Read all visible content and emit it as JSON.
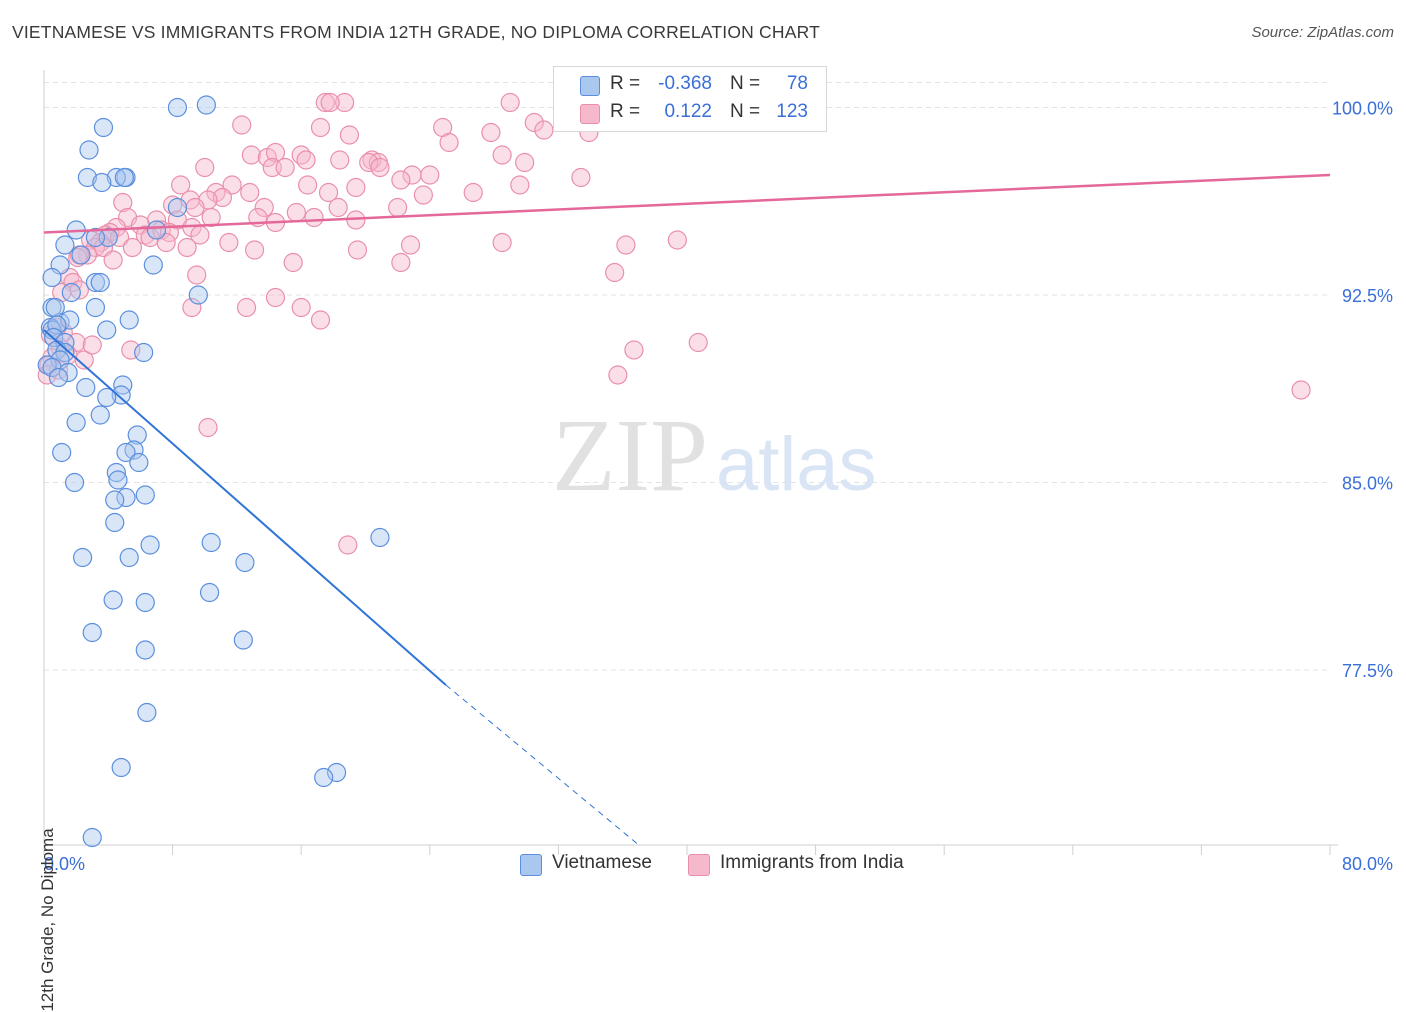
{
  "title": "VIETNAMESE VS IMMIGRANTS FROM INDIA 12TH GRADE, NO DIPLOMA CORRELATION CHART",
  "source": "Source: ZipAtlas.com",
  "watermark": {
    "zip": "ZIP",
    "atlas": "atlas"
  },
  "colors": {
    "blue_fill": "#aac7f0",
    "blue_stroke": "#5b8fde",
    "blue_line": "#2f74d6",
    "pink_fill": "#f6b9cc",
    "pink_stroke": "#ea8fab",
    "pink_line": "#e5689a",
    "value_text": "#3a6fd8",
    "grid": "#e3e3e3"
  },
  "legend": {
    "r_label": "R =",
    "n_label": "N =",
    "rows": [
      {
        "name": "Vietnamese",
        "r": "-0.368",
        "n": "78"
      },
      {
        "name": "Immigrants from India",
        "r": "0.122",
        "n": "123"
      }
    ]
  },
  "chart_data": {
    "type": "scatter",
    "title": "VIETNAMESE VS IMMIGRANTS FROM INDIA 12TH GRADE, NO DIPLOMA CORRELATION CHART",
    "xlabel": "",
    "ylabel": "12th Grade, No Diploma",
    "xlim": [
      0,
      80
    ],
    "ylim": [
      70.5,
      101.5
    ],
    "x_tick_labels": [
      "0.0%",
      "80.0%"
    ],
    "y_ticks": [
      77.5,
      85.0,
      92.5,
      100.0
    ],
    "y_tick_labels": [
      "77.5%",
      "85.0%",
      "92.5%",
      "100.0%"
    ],
    "grid": true,
    "legend_position": "top-center",
    "series": [
      {
        "name": "Vietnamese",
        "r": -0.368,
        "n": 78,
        "trend": {
          "x": [
            0.0,
            25.0
          ],
          "y": [
            91.1,
            76.9
          ],
          "dashed_to": [
            37.0,
            70.5
          ]
        },
        "points": [
          [
            8.3,
            100.0
          ],
          [
            10.1,
            100.1
          ],
          [
            3.7,
            99.2
          ],
          [
            2.8,
            98.3
          ],
          [
            5.1,
            97.2
          ],
          [
            2.7,
            97.2
          ],
          [
            4.5,
            97.2
          ],
          [
            5.0,
            97.2
          ],
          [
            3.6,
            97.0
          ],
          [
            8.3,
            96.0
          ],
          [
            2.0,
            95.1
          ],
          [
            7.0,
            95.1
          ],
          [
            4.0,
            94.8
          ],
          [
            3.2,
            94.8
          ],
          [
            1.3,
            94.5
          ],
          [
            2.3,
            94.1
          ],
          [
            1.0,
            93.7
          ],
          [
            6.8,
            93.7
          ],
          [
            0.5,
            93.2
          ],
          [
            3.2,
            93.0
          ],
          [
            3.5,
            93.0
          ],
          [
            1.7,
            92.6
          ],
          [
            9.6,
            92.5
          ],
          [
            3.2,
            92.0
          ],
          [
            0.5,
            92.0
          ],
          [
            5.3,
            91.5
          ],
          [
            1.0,
            91.4
          ],
          [
            1.6,
            91.5
          ],
          [
            0.4,
            91.2
          ],
          [
            0.5,
            91.1
          ],
          [
            0.8,
            91.3
          ],
          [
            3.9,
            91.1
          ],
          [
            0.6,
            90.8
          ],
          [
            1.3,
            90.6
          ],
          [
            0.8,
            90.3
          ],
          [
            1.3,
            90.2
          ],
          [
            6.2,
            90.2
          ],
          [
            1.0,
            89.9
          ],
          [
            0.2,
            89.7
          ],
          [
            0.5,
            89.6
          ],
          [
            1.5,
            89.4
          ],
          [
            0.9,
            89.2
          ],
          [
            4.9,
            88.9
          ],
          [
            2.6,
            88.8
          ],
          [
            4.8,
            88.5
          ],
          [
            3.9,
            88.4
          ],
          [
            3.5,
            87.7
          ],
          [
            2.0,
            87.4
          ],
          [
            5.8,
            86.9
          ],
          [
            1.1,
            86.2
          ],
          [
            5.6,
            86.3
          ],
          [
            5.1,
            86.2
          ],
          [
            5.9,
            85.8
          ],
          [
            4.5,
            85.4
          ],
          [
            4.6,
            85.1
          ],
          [
            1.9,
            85.0
          ],
          [
            6.3,
            84.5
          ],
          [
            5.1,
            84.4
          ],
          [
            4.4,
            84.3
          ],
          [
            4.4,
            83.4
          ],
          [
            20.9,
            82.8
          ],
          [
            10.4,
            82.6
          ],
          [
            6.6,
            82.5
          ],
          [
            2.4,
            82.0
          ],
          [
            5.3,
            82.0
          ],
          [
            12.5,
            81.8
          ],
          [
            10.3,
            80.6
          ],
          [
            4.3,
            80.3
          ],
          [
            6.3,
            80.2
          ],
          [
            3.0,
            79.0
          ],
          [
            12.4,
            78.7
          ],
          [
            6.3,
            78.3
          ],
          [
            6.4,
            75.8
          ],
          [
            18.2,
            73.4
          ],
          [
            17.4,
            73.2
          ],
          [
            4.8,
            73.6
          ],
          [
            3.0,
            70.8
          ],
          [
            0.7,
            92.0
          ]
        ]
      },
      {
        "name": "Immigrants from India",
        "r": 0.122,
        "n": 123,
        "trend": {
          "x": [
            0.0,
            80.0
          ],
          "y": [
            95.0,
            97.3
          ]
        },
        "points": [
          [
            17.5,
            100.2
          ],
          [
            18.7,
            100.2
          ],
          [
            29.0,
            100.2
          ],
          [
            17.8,
            100.2
          ],
          [
            30.5,
            99.4
          ],
          [
            24.8,
            99.2
          ],
          [
            12.3,
            99.3
          ],
          [
            17.2,
            99.2
          ],
          [
            27.8,
            99.0
          ],
          [
            19.0,
            98.9
          ],
          [
            31.1,
            99.1
          ],
          [
            33.9,
            99.0
          ],
          [
            25.2,
            98.6
          ],
          [
            12.9,
            98.1
          ],
          [
            16.0,
            98.1
          ],
          [
            13.9,
            98.0
          ],
          [
            14.4,
            98.2
          ],
          [
            28.5,
            98.1
          ],
          [
            16.3,
            97.9
          ],
          [
            18.4,
            97.9
          ],
          [
            20.4,
            97.9
          ],
          [
            20.8,
            97.8
          ],
          [
            29.9,
            97.8
          ],
          [
            20.2,
            97.8
          ],
          [
            14.2,
            97.6
          ],
          [
            15.0,
            97.6
          ],
          [
            10.0,
            97.6
          ],
          [
            20.9,
            97.6
          ],
          [
            22.9,
            97.3
          ],
          [
            24.0,
            97.3
          ],
          [
            33.4,
            97.2
          ],
          [
            22.2,
            97.1
          ],
          [
            8.5,
            96.9
          ],
          [
            11.7,
            96.9
          ],
          [
            16.4,
            96.9
          ],
          [
            19.4,
            96.8
          ],
          [
            29.6,
            96.9
          ],
          [
            10.7,
            96.6
          ],
          [
            12.8,
            96.6
          ],
          [
            17.7,
            96.6
          ],
          [
            11.1,
            96.4
          ],
          [
            23.6,
            96.5
          ],
          [
            26.7,
            96.6
          ],
          [
            9.1,
            96.3
          ],
          [
            10.2,
            96.3
          ],
          [
            4.9,
            96.2
          ],
          [
            8.0,
            96.1
          ],
          [
            13.7,
            96.0
          ],
          [
            22.0,
            96.0
          ],
          [
            9.4,
            96.0
          ],
          [
            18.3,
            96.0
          ],
          [
            15.7,
            95.8
          ],
          [
            16.8,
            95.6
          ],
          [
            13.3,
            95.6
          ],
          [
            10.4,
            95.6
          ],
          [
            5.2,
            95.6
          ],
          [
            8.3,
            95.5
          ],
          [
            19.4,
            95.5
          ],
          [
            7.0,
            95.5
          ],
          [
            14.4,
            95.4
          ],
          [
            6.0,
            95.3
          ],
          [
            9.2,
            95.2
          ],
          [
            4.5,
            95.2
          ],
          [
            7.3,
            95.1
          ],
          [
            4.1,
            95.0
          ],
          [
            7.8,
            95.0
          ],
          [
            6.3,
            94.9
          ],
          [
            3.8,
            94.9
          ],
          [
            9.7,
            94.9
          ],
          [
            6.6,
            94.8
          ],
          [
            4.7,
            94.8
          ],
          [
            2.9,
            94.7
          ],
          [
            3.5,
            94.6
          ],
          [
            7.6,
            94.6
          ],
          [
            11.5,
            94.6
          ],
          [
            39.4,
            94.7
          ],
          [
            28.5,
            94.6
          ],
          [
            22.8,
            94.5
          ],
          [
            36.2,
            94.5
          ],
          [
            5.5,
            94.4
          ],
          [
            3.2,
            94.4
          ],
          [
            8.9,
            94.4
          ],
          [
            3.7,
            94.4
          ],
          [
            13.1,
            94.3
          ],
          [
            19.5,
            94.3
          ],
          [
            2.7,
            94.1
          ],
          [
            2.2,
            94.1
          ],
          [
            2.1,
            94.0
          ],
          [
            4.3,
            93.9
          ],
          [
            15.5,
            93.8
          ],
          [
            22.2,
            93.8
          ],
          [
            35.5,
            93.4
          ],
          [
            9.5,
            93.3
          ],
          [
            1.6,
            93.2
          ],
          [
            1.8,
            93.0
          ],
          [
            14.4,
            92.4
          ],
          [
            1.1,
            92.6
          ],
          [
            2.2,
            92.7
          ],
          [
            9.2,
            92.0
          ],
          [
            12.6,
            92.0
          ],
          [
            16.0,
            92.0
          ],
          [
            17.2,
            91.5
          ],
          [
            40.7,
            90.6
          ],
          [
            36.7,
            90.3
          ],
          [
            5.4,
            90.3
          ],
          [
            2.0,
            90.6
          ],
          [
            1.0,
            90.4
          ],
          [
            0.5,
            90.0
          ],
          [
            0.3,
            89.7
          ],
          [
            0.2,
            89.3
          ],
          [
            35.7,
            89.3
          ],
          [
            78.2,
            88.7
          ],
          [
            10.2,
            87.2
          ],
          [
            18.9,
            82.5
          ],
          [
            1.2,
            91.0
          ],
          [
            0.8,
            91.2
          ],
          [
            1.5,
            90.1
          ],
          [
            0.4,
            90.9
          ],
          [
            2.5,
            89.9
          ],
          [
            3.0,
            90.5
          ],
          [
            0.9,
            89.5
          ]
        ]
      }
    ]
  }
}
